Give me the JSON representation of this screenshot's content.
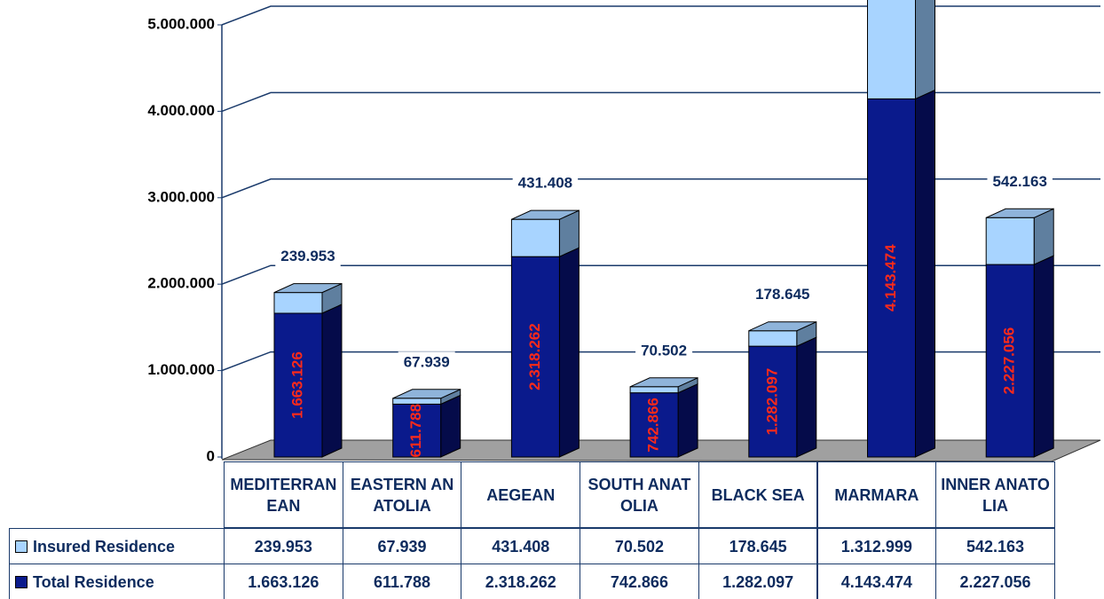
{
  "chart_data": {
    "type": "bar3d-stacked",
    "categories": [
      "MEDITERRANEAN",
      "EASTERN ANATOLIA",
      "AEGEAN",
      "SOUTH ANATOLIA",
      "BLACK SEA",
      "MARMARA",
      "INNER ANATOLIA"
    ],
    "series": [
      {
        "name": "Insured Residence",
        "color": "#a8d4ff",
        "values": [
          239953,
          67939,
          431408,
          70502,
          178645,
          1312999,
          542163
        ],
        "value_labels": [
          "239.953",
          "67.939",
          "431.408",
          "70.502",
          "178.645",
          "1.312.999",
          "542.163"
        ]
      },
      {
        "name": "Total Residence",
        "color": "#0a1a8c",
        "values": [
          1663126,
          611788,
          2318262,
          742866,
          1282097,
          4143474,
          2227056
        ],
        "value_labels": [
          "1.663.126",
          "611.788",
          "2.318.262",
          "742.866",
          "1.282.097",
          "4.143.474",
          "2.227.056"
        ]
      }
    ],
    "ylim": [
      0,
      5000000
    ],
    "yticks": [
      {
        "value": 0,
        "label": "0"
      },
      {
        "value": 1000000,
        "label": "1.000.000"
      },
      {
        "value": 2000000,
        "label": "2.000.000"
      },
      {
        "value": 3000000,
        "label": "3.000.000"
      },
      {
        "value": 4000000,
        "label": "4.000.000"
      },
      {
        "value": 5000000,
        "label": "5.000.000"
      }
    ],
    "grid": true
  }
}
